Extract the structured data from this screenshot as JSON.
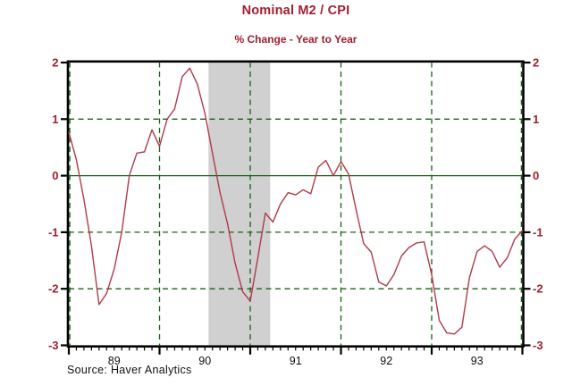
{
  "colors": {
    "accent_red": "#a01e30",
    "line_red": "#b03a4a",
    "grid_green": "#186018",
    "band_gray": "#d0d0d0",
    "axis_black": "#000000",
    "text_black": "#111111",
    "background": "#ffffff"
  },
  "chart_data": {
    "type": "line",
    "title": "Nominal M2 / CPI",
    "subtitle": "% Change - Year to Year",
    "source_note": "Source: Haver Analytics",
    "x_range": [
      1989,
      1994
    ],
    "ylim": [
      -3,
      2
    ],
    "y_ticks": [
      2,
      1,
      0,
      -1,
      -2,
      -3
    ],
    "y_tick_labels_both_sides": true,
    "x_tick_labels": [
      "89",
      "90",
      "91",
      "92",
      "93"
    ],
    "x_minor_ticks": "monthly",
    "h_gridlines_dashed": [
      1,
      -1,
      -2
    ],
    "zero_line_solid": true,
    "v_gridlines_at_year_boundaries": true,
    "legend": "none",
    "recession_band": {
      "start_decimal_year": 1990.54,
      "end_decimal_year": 1991.22
    },
    "series": [
      {
        "name": "Nominal M2 / CPI",
        "unit": "% change year to year",
        "frequency": "monthly",
        "start": "1989-01",
        "end": "1994-01",
        "values": [
          0.77,
          0.28,
          -0.42,
          -1.25,
          -2.28,
          -2.08,
          -1.65,
          -1.0,
          0.0,
          0.4,
          0.42,
          0.81,
          0.52,
          1.0,
          1.18,
          1.75,
          1.9,
          1.62,
          1.1,
          0.4,
          -0.3,
          -0.85,
          -1.55,
          -2.05,
          -2.22,
          -1.45,
          -0.66,
          -0.82,
          -0.5,
          -0.3,
          -0.34,
          -0.25,
          -0.32,
          0.15,
          0.27,
          0.0,
          0.25,
          0.03,
          -0.6,
          -1.2,
          -1.35,
          -1.88,
          -1.95,
          -1.75,
          -1.42,
          -1.27,
          -1.19,
          -1.17,
          -1.75,
          -2.56,
          -2.78,
          -2.8,
          -2.68,
          -1.8,
          -1.34,
          -1.24,
          -1.34,
          -1.62,
          -1.45,
          -1.12,
          -0.97
        ]
      }
    ]
  }
}
